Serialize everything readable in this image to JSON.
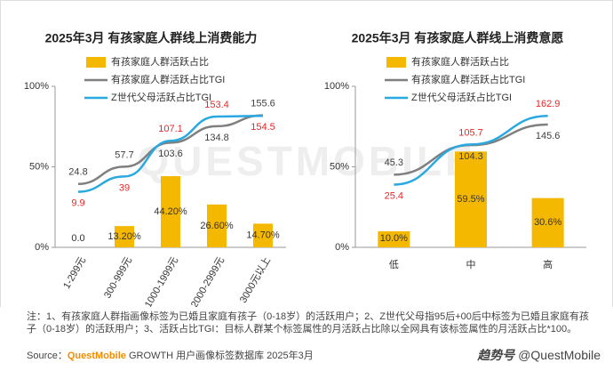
{
  "chart_data": [
    {
      "type": "bar",
      "title": "2025年3月 有孩家庭人群线上消费能力",
      "categories": [
        "1-299元",
        "300-999元",
        "1000-1999元",
        "2000-2999元",
        "3000元以上"
      ],
      "ylim": [
        0,
        100
      ],
      "yticks": [
        {
          "value": 0,
          "label": "0%"
        },
        {
          "value": 50,
          "label": "50%"
        },
        {
          "value": 100,
          "label": "100%"
        }
      ],
      "y2lim": [
        -96,
        211
      ],
      "series": [
        {
          "name": "有孩家庭人群活跃占比",
          "type": "bar",
          "color": "#f5b800",
          "values": [
            0.0,
            13.2,
            44.2,
            26.6,
            14.7
          ],
          "value_labels": [
            "0.0",
            "13.20%",
            "44.20%",
            "26.60%",
            "14.70%"
          ]
        },
        {
          "name": "有孩家庭人群活跃占比TGI",
          "type": "line",
          "axis": "y2",
          "color": "#7f7f7f",
          "label_color": "#404040",
          "values": [
            24.8,
            57.7,
            103.6,
            134.8,
            155.6
          ]
        },
        {
          "name": "Z世代父母活跃占比TGI",
          "type": "line",
          "axis": "y2",
          "color": "#29a9e0",
          "label_color": "#e8262a",
          "values": [
            9.9,
            39.0,
            107.1,
            153.4,
            154.5
          ]
        }
      ]
    },
    {
      "type": "bar",
      "title": "2025年3月 有孩家庭人群线上消费意愿",
      "categories": [
        "低",
        "中",
        "高"
      ],
      "ylim": [
        0,
        100
      ],
      "yticks": [
        {
          "value": 0,
          "label": "0%"
        },
        {
          "value": 50,
          "label": "50%"
        },
        {
          "value": 100,
          "label": "100%"
        }
      ],
      "y2lim": [
        -100,
        222
      ],
      "series": [
        {
          "name": "有孩家庭人群活跃占比",
          "type": "bar",
          "color": "#f5b800",
          "values": [
            10.0,
            59.5,
            30.6
          ],
          "value_labels": [
            "10.0%",
            "59.5%",
            "30.6%"
          ]
        },
        {
          "name": "有孩家庭人群活跃占比TGI",
          "type": "line",
          "axis": "y2",
          "color": "#7f7f7f",
          "label_color": "#404040",
          "values": [
            45.3,
            104.3,
            145.6
          ]
        },
        {
          "name": "Z世代父母活跃占比TGI",
          "type": "line",
          "axis": "y2",
          "color": "#29a9e0",
          "label_color": "#e8262a",
          "values": [
            25.4,
            105.7,
            162.9
          ]
        }
      ]
    }
  ],
  "watermark": "QUESTMOBILE",
  "note": "注：1、有孩家庭人群指画像标签为已婚且家庭有孩子（0-18岁）的活跃用户；2、Z世代父母指95后+00后中标签为已婚且家庭有孩子（0-18岁）的活跃用户；3、活跃占比TGI：目标人群某个标签属性的月活跃占比除以全网具有该标签属性的月活跃占比*100。",
  "source_label": "Source：",
  "source_brand": "QuestMobile",
  "source_text": "GROWTH 用户画像标签数据库 2025年3月",
  "brand_logo": "趋势号",
  "brand_handle": "@QuestMobile"
}
